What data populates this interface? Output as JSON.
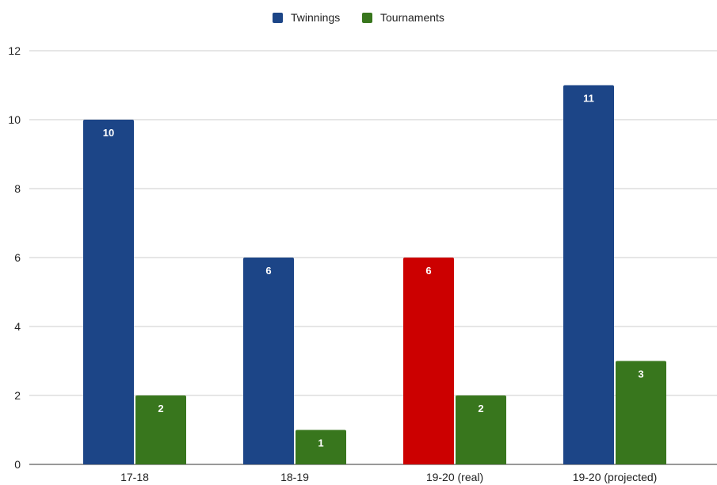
{
  "chart_data": {
    "type": "bar",
    "categories": [
      "17-18",
      "18-19",
      "19-20 (real)",
      "19-20 (projected)"
    ],
    "series": [
      {
        "name": "Twinnings",
        "color": "#1c4587",
        "values": [
          10,
          6,
          6,
          11
        ]
      },
      {
        "name": "Tournaments",
        "color": "#38761d",
        "values": [
          2,
          1,
          2,
          3
        ]
      }
    ],
    "highlight": {
      "series": 0,
      "category": 2,
      "color": "#cc0000"
    },
    "ylim": [
      0,
      12
    ],
    "yticks": [
      "0",
      "2",
      "4",
      "6",
      "8",
      "10",
      "12"
    ],
    "grid": true,
    "legend_position": "top-center",
    "data_labels": true,
    "gridline_color": "#cccccc",
    "axis_color": "#333333"
  }
}
